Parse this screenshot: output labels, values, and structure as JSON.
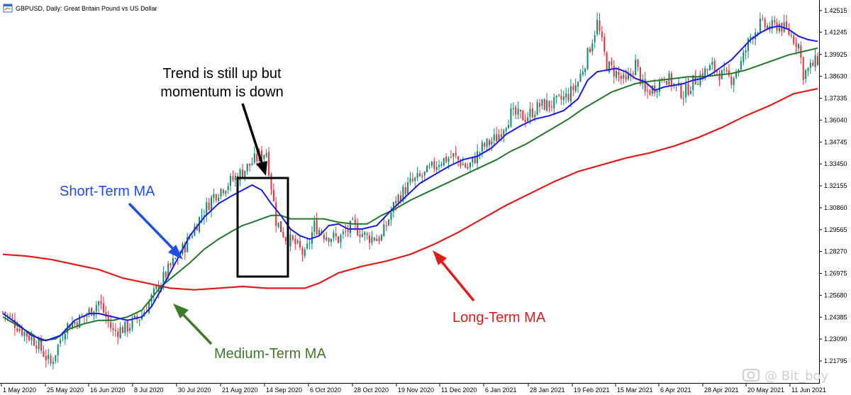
{
  "header": {
    "symbol_line": "GBPUSD, Daily:  Great Britain Pound vs US Dollar",
    "icon": "chart-window-icon"
  },
  "watermark": {
    "text": "@ Bit_boy",
    "icon": "camera-icon"
  },
  "colors": {
    "bull": "#0e8a74",
    "bear": "#e5333a",
    "short_ma": "#1a1ae6",
    "medium_ma": "#1f7a2a",
    "long_ma": "#e31b1b",
    "annotation_short": "#1e4fe6",
    "annotation_medium": "#3f7a2a",
    "annotation_long": "#e31b1b",
    "box": "#000000"
  },
  "annotations": {
    "short_term": "Short-Term MA",
    "medium_term": "Medium-Term MA",
    "long_term": "Long-Term MA",
    "trend_line1": "Trend is still up but",
    "trend_line2": "momentum is down"
  },
  "chart_data": {
    "type": "candlestick",
    "symbol": "GBPUSD",
    "timeframe": "Daily",
    "ylim": [
      1.204,
      1.4287
    ],
    "y_ticks": [
      "1.42515",
      "1.41245",
      "1.39925",
      "1.38630",
      "1.37335",
      "1.36040",
      "1.34745",
      "1.33450",
      "1.32155",
      "1.30860",
      "1.29565",
      "1.28270",
      "1.26975",
      "1.25680",
      "1.24385",
      "1.23090",
      "1.21795"
    ],
    "x_ticks": [
      "1 May 2020",
      "25 May 2020",
      "16 Jun 2020",
      "8 Jul 2020",
      "30 Jul 2020",
      "21 Aug 2020",
      "14 Sep 2020",
      "6 Oct 2020",
      "28 Oct 2020",
      "19 Nov 2020",
      "11 Dec 2020",
      "6 Jan 2021",
      "28 Jan 2021",
      "19 Feb 2021",
      "15 Mar 2021",
      "6 Apr 2021",
      "28 Apr 2021",
      "20 May 2021",
      "11 Jun 2021"
    ],
    "close_path": [
      [
        0,
        1.247
      ],
      [
        8,
        1.236
      ],
      [
        14,
        1.229
      ],
      [
        20,
        1.216
      ],
      [
        26,
        1.238
      ],
      [
        34,
        1.244
      ],
      [
        40,
        1.253
      ],
      [
        46,
        1.235
      ],
      [
        52,
        1.238
      ],
      [
        58,
        1.245
      ],
      [
        64,
        1.26
      ],
      [
        70,
        1.274
      ],
      [
        76,
        1.286
      ],
      [
        82,
        1.302
      ],
      [
        88,
        1.316
      ],
      [
        94,
        1.323
      ],
      [
        100,
        1.33
      ],
      [
        106,
        1.338
      ],
      [
        110,
        1.342
      ],
      [
        114,
        1.301
      ],
      [
        118,
        1.291
      ],
      [
        122,
        1.287
      ],
      [
        126,
        1.28
      ],
      [
        130,
        1.298
      ],
      [
        134,
        1.293
      ],
      [
        140,
        1.29
      ],
      [
        146,
        1.298
      ],
      [
        152,
        1.291
      ],
      [
        158,
        1.291
      ],
      [
        164,
        1.313
      ],
      [
        170,
        1.323
      ],
      [
        176,
        1.328
      ],
      [
        182,
        1.336
      ],
      [
        188,
        1.339
      ],
      [
        194,
        1.332
      ],
      [
        200,
        1.344
      ],
      [
        206,
        1.35
      ],
      [
        212,
        1.364
      ],
      [
        218,
        1.362
      ],
      [
        224,
        1.369
      ],
      [
        230,
        1.37
      ],
      [
        236,
        1.375
      ],
      [
        240,
        1.383
      ],
      [
        244,
        1.399
      ],
      [
        248,
        1.418
      ],
      [
        252,
        1.393
      ],
      [
        256,
        1.388
      ],
      [
        260,
        1.382
      ],
      [
        264,
        1.394
      ],
      [
        268,
        1.376
      ],
      [
        272,
        1.38
      ],
      [
        276,
        1.387
      ],
      [
        280,
        1.381
      ],
      [
        284,
        1.376
      ],
      [
        288,
        1.383
      ],
      [
        292,
        1.388
      ],
      [
        296,
        1.392
      ],
      [
        300,
        1.387
      ],
      [
        304,
        1.385
      ],
      [
        308,
        1.394
      ],
      [
        312,
        1.41
      ],
      [
        316,
        1.417
      ],
      [
        320,
        1.415
      ],
      [
        324,
        1.417
      ],
      [
        328,
        1.412
      ],
      [
        332,
        1.405
      ],
      [
        334,
        1.388
      ],
      [
        336,
        1.39
      ],
      [
        340,
        1.396
      ]
    ],
    "series": [
      {
        "name": "Short-Term MA",
        "points": [
          [
            0,
            1.246
          ],
          [
            6,
            1.24
          ],
          [
            12,
            1.233
          ],
          [
            18,
            1.23
          ],
          [
            24,
            1.233
          ],
          [
            30,
            1.242
          ],
          [
            36,
            1.246
          ],
          [
            40,
            1.246
          ],
          [
            46,
            1.244
          ],
          [
            52,
            1.242
          ],
          [
            58,
            1.244
          ],
          [
            62,
            1.25
          ],
          [
            66,
            1.26
          ],
          [
            72,
            1.276
          ],
          [
            78,
            1.292
          ],
          [
            84,
            1.303
          ],
          [
            90,
            1.311
          ],
          [
            96,
            1.316
          ],
          [
            100,
            1.319
          ],
          [
            104,
            1.322
          ],
          [
            108,
            1.319
          ],
          [
            112,
            1.311
          ],
          [
            116,
            1.304
          ],
          [
            120,
            1.296
          ],
          [
            124,
            1.292
          ],
          [
            128,
            1.29
          ],
          [
            132,
            1.292
          ],
          [
            136,
            1.298
          ],
          [
            140,
            1.299
          ],
          [
            144,
            1.296
          ],
          [
            150,
            1.296
          ],
          [
            156,
            1.298
          ],
          [
            162,
            1.307
          ],
          [
            168,
            1.315
          ],
          [
            174,
            1.323
          ],
          [
            180,
            1.328
          ],
          [
            186,
            1.333
          ],
          [
            192,
            1.337
          ],
          [
            198,
            1.339
          ],
          [
            204,
            1.344
          ],
          [
            210,
            1.352
          ],
          [
            216,
            1.357
          ],
          [
            222,
            1.361
          ],
          [
            228,
            1.363
          ],
          [
            234,
            1.366
          ],
          [
            240,
            1.373
          ],
          [
            244,
            1.384
          ],
          [
            248,
            1.389
          ],
          [
            252,
            1.39
          ],
          [
            256,
            1.391
          ],
          [
            260,
            1.389
          ],
          [
            264,
            1.385
          ],
          [
            268,
            1.383
          ],
          [
            272,
            1.378
          ],
          [
            276,
            1.38
          ],
          [
            280,
            1.381
          ],
          [
            284,
            1.382
          ],
          [
            288,
            1.384
          ],
          [
            292,
            1.385
          ],
          [
            296,
            1.388
          ],
          [
            300,
            1.392
          ],
          [
            304,
            1.396
          ],
          [
            308,
            1.402
          ],
          [
            312,
            1.408
          ],
          [
            316,
            1.412
          ],
          [
            320,
            1.415
          ],
          [
            324,
            1.416
          ],
          [
            328,
            1.414
          ],
          [
            332,
            1.41
          ],
          [
            336,
            1.408
          ],
          [
            340,
            1.407
          ]
        ]
      },
      {
        "name": "Medium-Term MA",
        "points": [
          [
            0,
            1.244
          ],
          [
            6,
            1.239
          ],
          [
            12,
            1.234
          ],
          [
            16,
            1.23
          ],
          [
            22,
            1.231
          ],
          [
            28,
            1.237
          ],
          [
            34,
            1.24
          ],
          [
            40,
            1.242
          ],
          [
            46,
            1.242
          ],
          [
            52,
            1.244
          ],
          [
            58,
            1.248
          ],
          [
            62,
            1.255
          ],
          [
            66,
            1.262
          ],
          [
            72,
            1.269
          ],
          [
            78,
            1.276
          ],
          [
            84,
            1.284
          ],
          [
            90,
            1.29
          ],
          [
            96,
            1.295
          ],
          [
            100,
            1.298
          ],
          [
            104,
            1.3
          ],
          [
            108,
            1.302
          ],
          [
            112,
            1.304
          ],
          [
            116,
            1.304
          ],
          [
            120,
            1.302
          ],
          [
            124,
            1.302
          ],
          [
            128,
            1.302
          ],
          [
            134,
            1.302
          ],
          [
            140,
            1.3
          ],
          [
            146,
            1.299
          ],
          [
            152,
            1.299
          ],
          [
            158,
            1.304
          ],
          [
            164,
            1.308
          ],
          [
            170,
            1.313
          ],
          [
            176,
            1.317
          ],
          [
            182,
            1.321
          ],
          [
            188,
            1.325
          ],
          [
            194,
            1.329
          ],
          [
            200,
            1.333
          ],
          [
            206,
            1.337
          ],
          [
            212,
            1.342
          ],
          [
            218,
            1.346
          ],
          [
            224,
            1.351
          ],
          [
            230,
            1.356
          ],
          [
            236,
            1.361
          ],
          [
            242,
            1.367
          ],
          [
            248,
            1.372
          ],
          [
            254,
            1.377
          ],
          [
            260,
            1.38
          ],
          [
            264,
            1.382
          ],
          [
            268,
            1.383
          ],
          [
            274,
            1.384
          ],
          [
            280,
            1.385
          ],
          [
            286,
            1.386
          ],
          [
            292,
            1.386
          ],
          [
            298,
            1.387
          ],
          [
            304,
            1.388
          ],
          [
            310,
            1.39
          ],
          [
            316,
            1.393
          ],
          [
            322,
            1.396
          ],
          [
            328,
            1.399
          ],
          [
            334,
            1.401
          ],
          [
            340,
            1.403
          ]
        ]
      },
      {
        "name": "Long-Term MA",
        "points": [
          [
            0,
            1.281
          ],
          [
            10,
            1.28
          ],
          [
            20,
            1.278
          ],
          [
            30,
            1.275
          ],
          [
            40,
            1.272
          ],
          [
            50,
            1.267
          ],
          [
            60,
            1.264
          ],
          [
            70,
            1.261
          ],
          [
            80,
            1.26
          ],
          [
            90,
            1.261
          ],
          [
            100,
            1.262
          ],
          [
            110,
            1.261
          ],
          [
            120,
            1.261
          ],
          [
            126,
            1.261
          ],
          [
            132,
            1.264
          ],
          [
            140,
            1.27
          ],
          [
            150,
            1.274
          ],
          [
            160,
            1.277
          ],
          [
            170,
            1.281
          ],
          [
            180,
            1.287
          ],
          [
            190,
            1.294
          ],
          [
            200,
            1.302
          ],
          [
            210,
            1.31
          ],
          [
            220,
            1.317
          ],
          [
            230,
            1.324
          ],
          [
            240,
            1.33
          ],
          [
            250,
            1.334
          ],
          [
            260,
            1.338
          ],
          [
            270,
            1.341
          ],
          [
            280,
            1.345
          ],
          [
            290,
            1.35
          ],
          [
            300,
            1.356
          ],
          [
            310,
            1.363
          ],
          [
            320,
            1.369
          ],
          [
            330,
            1.376
          ],
          [
            340,
            1.379
          ]
        ]
      }
    ]
  }
}
